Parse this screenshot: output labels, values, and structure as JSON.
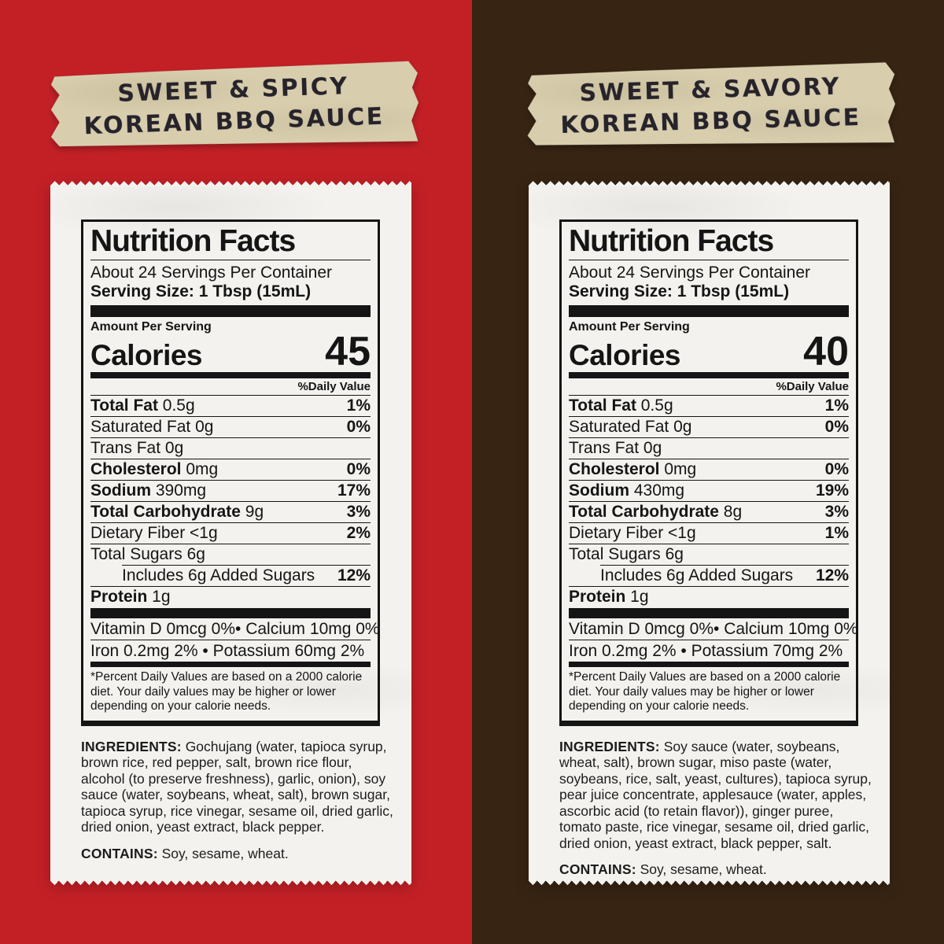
{
  "colors": {
    "left_background": "#c32026",
    "right_background": "#372413",
    "tape": "#d8ceae",
    "paper": "#f3f2ef",
    "ink": "#151515"
  },
  "left": {
    "tape": {
      "line1": "SWEET & SPICY",
      "line2": "KOREAN BBQ SAUCE"
    },
    "nf": {
      "title": "Nutrition Facts",
      "servings": "About 24 Servings Per Container",
      "serving_size": "Serving Size: 1 Tbsp (15mL)",
      "amount_per_serving": "Amount Per Serving",
      "calories_label": "Calories",
      "calories_value": "45",
      "daily_value_header": "%Daily Value",
      "rows": [
        {
          "bold": "Total Fat",
          "text": " 0.5g",
          "pct": "1%"
        },
        {
          "bold": "",
          "text": "Saturated Fat 0g",
          "pct": "0%"
        },
        {
          "bold": "",
          "text": "Trans Fat 0g",
          "pct": ""
        },
        {
          "bold": "Cholesterol",
          "text": " 0mg",
          "pct": "0%"
        },
        {
          "bold": "Sodium",
          "text": " 390mg",
          "pct": "17%"
        },
        {
          "bold": "Total Carbohydrate",
          "text": " 9g",
          "pct": "3%"
        },
        {
          "bold": "",
          "text": "Dietary Fiber <1g",
          "pct": "2%"
        },
        {
          "bold": "",
          "text": "Total Sugars 6g",
          "pct": ""
        },
        {
          "bold": "",
          "text": "Includes 6g Added Sugars",
          "pct": "12%"
        },
        {
          "bold": "Protein",
          "text": " 1g",
          "pct": ""
        }
      ],
      "vitamins": [
        "Vitamin D 0mcg 0%• Calcium 10mg 0%",
        "Iron 0.2mg 2% • Potassium 60mg 2%"
      ],
      "footnote": "*Percent Daily Values are based on a 2000 calorie diet. Your daily values may be higher or lower depending on your calorie needs."
    },
    "ingredients_label": "INGREDIENTS:",
    "ingredients_text": " Gochujang (water, tapioca syrup, brown rice, red pepper, salt, brown rice flour, alcohol (to preserve freshness), garlic, onion), soy sauce (water, soybeans, wheat, salt), brown sugar, tapioca syrup, rice vinegar, sesame oil, dried garlic, dried onion, yeast extract, black pepper.",
    "contains_label": "CONTAINS:",
    "contains_text": " Soy, sesame, wheat."
  },
  "right": {
    "tape": {
      "line1": "SWEET & SAVORY",
      "line2": "KOREAN BBQ SAUCE"
    },
    "nf": {
      "title": "Nutrition Facts",
      "servings": "About 24 Servings Per Container",
      "serving_size": "Serving Size: 1 Tbsp (15mL)",
      "amount_per_serving": "Amount Per Serving",
      "calories_label": "Calories",
      "calories_value": "40",
      "daily_value_header": "%Daily Value",
      "rows": [
        {
          "bold": "Total Fat",
          "text": " 0.5g",
          "pct": "1%"
        },
        {
          "bold": "",
          "text": "Saturated Fat 0g",
          "pct": "0%"
        },
        {
          "bold": "",
          "text": "Trans Fat 0g",
          "pct": ""
        },
        {
          "bold": "Cholesterol",
          "text": " 0mg",
          "pct": "0%"
        },
        {
          "bold": "Sodium",
          "text": " 430mg",
          "pct": "19%"
        },
        {
          "bold": "Total Carbohydrate",
          "text": " 8g",
          "pct": "3%"
        },
        {
          "bold": "",
          "text": "Dietary Fiber <1g",
          "pct": "1%"
        },
        {
          "bold": "",
          "text": "Total Sugars 6g",
          "pct": ""
        },
        {
          "bold": "",
          "text": "Includes 6g Added Sugars",
          "pct": "12%"
        },
        {
          "bold": "Protein",
          "text": " 1g",
          "pct": ""
        }
      ],
      "vitamins": [
        "Vitamin D 0mcg 0%• Calcium 10mg 0%",
        "Iron 0.2mg 2% • Potassium 70mg 2%"
      ],
      "footnote": "*Percent Daily Values are based on a 2000 calorie diet. Your daily values may be higher or lower depending on your calorie needs."
    },
    "ingredients_label": "INGREDIENTS:",
    "ingredients_text": " Soy sauce (water, soybeans, wheat, salt), brown sugar, miso paste (water, soybeans, rice, salt, yeast, cultures), tapioca syrup, pear juice concentrate, applesauce (water, apples, ascorbic acid (to retain flavor)), ginger puree, tomato paste, rice vinegar, sesame oil, dried garlic, dried onion, yeast extract, black pepper, salt.",
    "contains_label": "CONTAINS:",
    "contains_text": " Soy, sesame, wheat."
  }
}
